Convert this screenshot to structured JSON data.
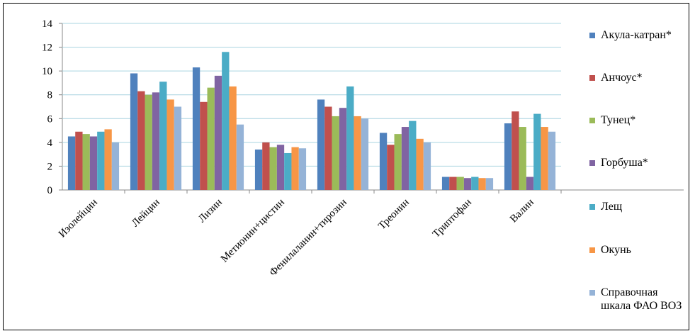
{
  "chart_data": {
    "type": "bar",
    "categories": [
      "Изолейцин",
      "Лейцин",
      "Лизин",
      "Метионин+цистин",
      "Фенилаланин+тирозин",
      "Треонин",
      "Триптофан",
      "Валин"
    ],
    "series": [
      {
        "name": "Акула-катран*",
        "color": "#4f81bd",
        "values": [
          4.5,
          9.8,
          10.3,
          3.4,
          7.6,
          4.8,
          1.1,
          5.6
        ]
      },
      {
        "name": "Анчоус*",
        "color": "#c0504d",
        "values": [
          4.9,
          8.3,
          7.4,
          4.0,
          7.0,
          3.8,
          1.1,
          6.6
        ]
      },
      {
        "name": "Тунец*",
        "color": "#9bbb59",
        "values": [
          4.7,
          8.0,
          8.6,
          3.6,
          6.2,
          4.7,
          1.1,
          5.3
        ]
      },
      {
        "name": "Горбуша*",
        "color": "#8064a2",
        "values": [
          4.5,
          8.2,
          9.6,
          3.8,
          6.9,
          5.3,
          1.0,
          1.1
        ]
      },
      {
        "name": "Лещ",
        "color": "#4bacc6",
        "values": [
          4.9,
          9.1,
          11.6,
          3.1,
          8.7,
          5.8,
          1.1,
          6.4
        ]
      },
      {
        "name": "Окунь",
        "color": "#f79646",
        "values": [
          5.1,
          7.6,
          8.7,
          3.6,
          6.2,
          4.3,
          1.0,
          5.3
        ]
      },
      {
        "name": "Справочная шкала ФАО ВОЗ",
        "color": "#95b3d7",
        "values": [
          4.0,
          7.0,
          5.5,
          3.5,
          6.0,
          4.0,
          1.0,
          4.9
        ]
      }
    ],
    "ylim": [
      0,
      14
    ],
    "yticks": [
      0,
      2,
      4,
      6,
      8,
      10,
      12,
      14
    ],
    "grid": true,
    "legend": "right"
  }
}
